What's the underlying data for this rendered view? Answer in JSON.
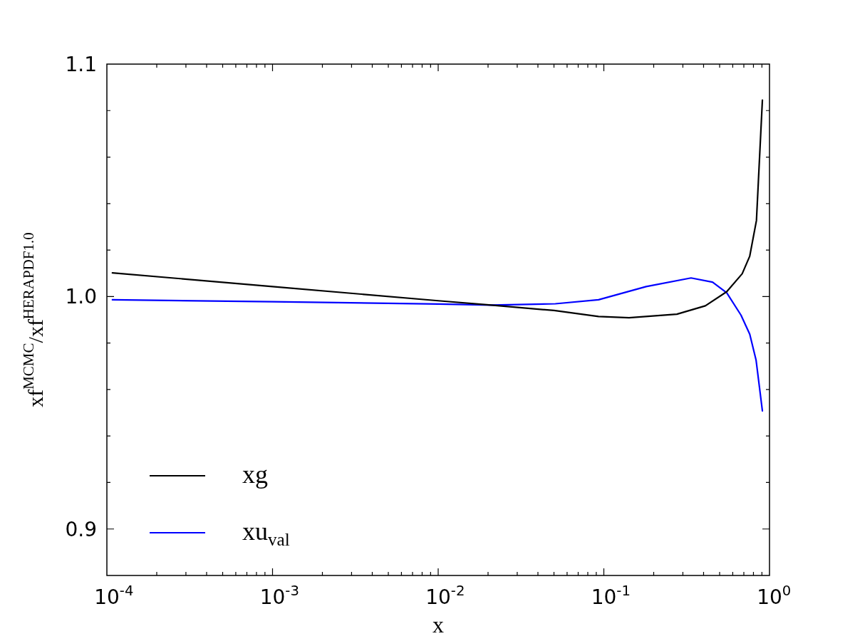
{
  "chart_data": {
    "type": "line",
    "xlabel": "x",
    "ylabel": "xf$^{MCMC}$/xf$^{HERAPDF1.0}$",
    "log": "x",
    "xlim": [
      0.0001,
      1
    ],
    "ylim": [
      0.88,
      1.1
    ],
    "xticks": [
      {
        "value": 0.0001,
        "label": "10$^{-4}$"
      },
      {
        "value": 0.0002,
        "label": null
      },
      {
        "value": 0.0003,
        "label": null
      },
      {
        "value": 0.0004,
        "label": null
      },
      {
        "value": 0.0005,
        "label": null
      },
      {
        "value": 0.0006,
        "label": null
      },
      {
        "value": 0.0007,
        "label": null
      },
      {
        "value": 0.0008,
        "label": null
      },
      {
        "value": 0.0009,
        "label": null
      },
      {
        "value": 0.001,
        "label": "10$^{-3}$"
      },
      {
        "value": 0.002,
        "label": null
      },
      {
        "value": 0.003,
        "label": null
      },
      {
        "value": 0.004,
        "label": null
      },
      {
        "value": 0.005,
        "label": null
      },
      {
        "value": 0.006,
        "label": null
      },
      {
        "value": 0.007,
        "label": null
      },
      {
        "value": 0.008,
        "label": null
      },
      {
        "value": 0.009,
        "label": null
      },
      {
        "value": 0.01,
        "label": "10$^{-2}$"
      },
      {
        "value": 0.02,
        "label": null
      },
      {
        "value": 0.03,
        "label": null
      },
      {
        "value": 0.04,
        "label": null
      },
      {
        "value": 0.05,
        "label": null
      },
      {
        "value": 0.06,
        "label": null
      },
      {
        "value": 0.07,
        "label": null
      },
      {
        "value": 0.08,
        "label": null
      },
      {
        "value": 0.09,
        "label": null
      },
      {
        "value": 0.1,
        "label": "10$^{-1}$"
      },
      {
        "value": 0.2,
        "label": null
      },
      {
        "value": 0.3,
        "label": null
      },
      {
        "value": 0.4,
        "label": null
      },
      {
        "value": 0.5,
        "label": null
      },
      {
        "value": 0.6,
        "label": null
      },
      {
        "value": 0.7,
        "label": null
      },
      {
        "value": 0.8,
        "label": null
      },
      {
        "value": 0.9,
        "label": null
      },
      {
        "value": 1,
        "label": "10$^{0}$"
      }
    ],
    "yticks": [
      {
        "value": 0.88,
        "label": null
      },
      {
        "value": 0.9,
        "label": "0.9"
      },
      {
        "value": 0.92,
        "label": null
      },
      {
        "value": 0.94,
        "label": null
      },
      {
        "value": 0.96,
        "label": null
      },
      {
        "value": 0.98,
        "label": null
      },
      {
        "value": 1,
        "label": "1.0"
      },
      {
        "value": 1.02,
        "label": null
      },
      {
        "value": 1.04,
        "label": null
      },
      {
        "value": 1.06,
        "label": null
      },
      {
        "value": 1.08,
        "label": null
      },
      {
        "value": 1.1,
        "label": "1.1"
      }
    ],
    "grid": false,
    "legend": "bottom left",
    "series": [
      {
        "name": "xg",
        "color": "#000000",
        "x": [
          0.000108,
          0.001,
          0.01,
          0.0209,
          0.05,
          0.0929,
          0.142,
          0.276,
          0.41,
          0.552,
          0.684,
          0.76,
          0.834,
          0.906
        ],
        "values": [
          1.0102,
          1.0043,
          0.9982,
          0.9963,
          0.994,
          0.9914,
          0.9909,
          0.9924,
          0.996,
          1.0021,
          1.0098,
          1.0174,
          1.0327,
          1.0845
        ]
      },
      {
        "name": "xu$_{val}$",
        "color": "#0000ff",
        "x": [
          0.000108,
          0.001,
          0.01,
          0.0209,
          0.051,
          0.0929,
          0.18,
          0.336,
          0.453,
          0.552,
          0.673,
          0.76,
          0.83,
          0.906
        ],
        "values": [
          0.9986,
          0.9978,
          0.9968,
          0.9963,
          0.9969,
          0.9986,
          1.0043,
          1.008,
          1.0062,
          1.0016,
          0.992,
          0.9838,
          0.9726,
          0.9508
        ]
      }
    ]
  }
}
